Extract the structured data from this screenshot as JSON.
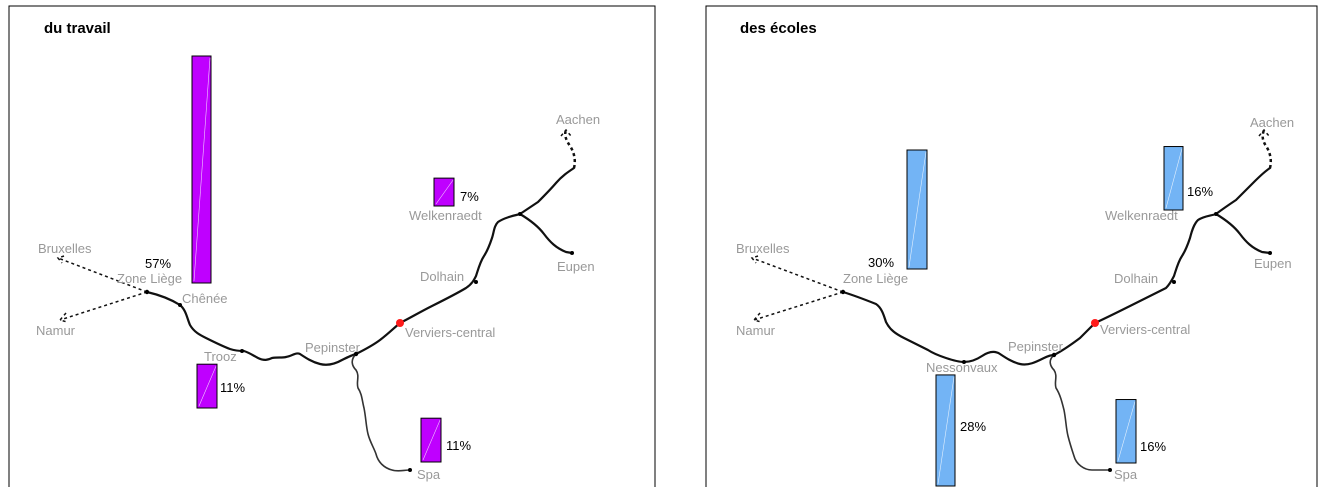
{
  "panels": [
    {
      "title": "du travail",
      "places": {
        "aachen": "Aachen",
        "bruxelles": "Bruxelles",
        "zone_liege": "Zone Liège",
        "chenee": "Chênée",
        "namur": "Namur",
        "trooz": "Trooz",
        "pepinster": "Pepinster",
        "verviers": "Verviers-central",
        "dolhain": "Dolhain",
        "welkenraedt": "Welkenraedt",
        "eupen": "Eupen",
        "spa": "Spa"
      },
      "bars": [
        {
          "place": "Zone Liège",
          "label": "57%",
          "value": 57
        },
        {
          "place": "Welkenraedt",
          "label": "7%",
          "value": 7
        },
        {
          "place": "Trooz",
          "label": "11%",
          "value": 11
        },
        {
          "place": "Spa",
          "label": "11%",
          "value": 11
        }
      ],
      "bar_color": "#bf00ff"
    },
    {
      "title": "des écoles",
      "places": {
        "aachen": "Aachen",
        "bruxelles": "Bruxelles",
        "zone_liege": "Zone Liège",
        "namur": "Namur",
        "nessonvaux": "Nessonvaux",
        "pepinster": "Pepinster",
        "verviers": "Verviers-central",
        "dolhain": "Dolhain",
        "welkenraedt": "Welkenraedt",
        "eupen": "Eupen",
        "spa": "Spa"
      },
      "bars": [
        {
          "place": "Zone Liège",
          "label": "30%",
          "value": 30
        },
        {
          "place": "Welkenraedt",
          "label": "16%",
          "value": 16
        },
        {
          "place": "Nessonvaux",
          "label": "28%",
          "value": 28
        },
        {
          "place": "Spa",
          "label": "16%",
          "value": 16
        }
      ],
      "bar_color": "#73b4f5"
    }
  ],
  "hub_color": "#ff1a1a"
}
